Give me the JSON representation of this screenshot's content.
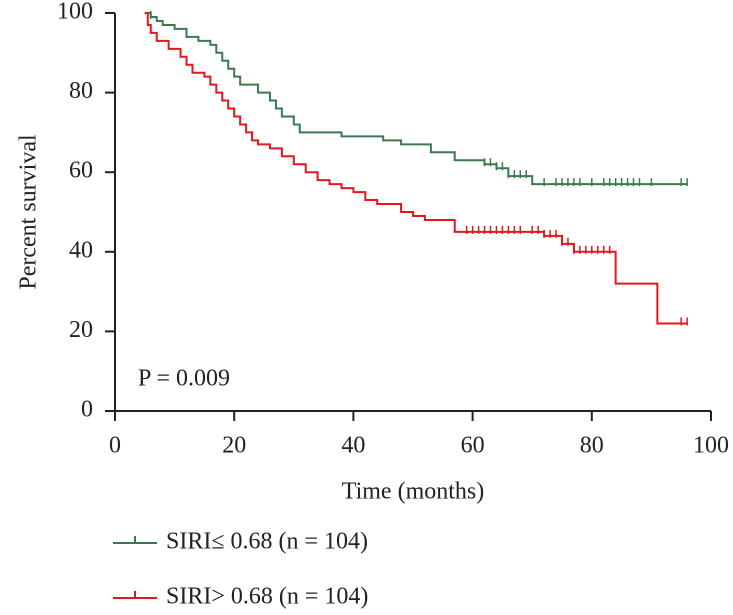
{
  "chart_data": {
    "type": "survival",
    "y_label": "Percent survival",
    "x_label": "Time (months)",
    "annotation": "P = 0.009",
    "xlim": [
      0,
      100
    ],
    "ylim": [
      0,
      100
    ],
    "xticks": [
      0,
      20,
      40,
      60,
      80,
      100
    ],
    "yticks": [
      0,
      20,
      40,
      60,
      80,
      100
    ],
    "series": [
      {
        "name": "SIRI≤ 0.68 (n = 104)",
        "color": "#3b7a50",
        "x": [
          5,
          6,
          7,
          8,
          10,
          12,
          14,
          16,
          17,
          18,
          19,
          20,
          21,
          24,
          26,
          27,
          28,
          30,
          31,
          38,
          45,
          48,
          53,
          57,
          62,
          64,
          66,
          70,
          96
        ],
        "values": [
          100,
          99,
          98,
          97,
          96,
          94,
          93,
          92,
          90,
          88,
          86,
          84,
          82,
          80,
          78,
          76,
          74,
          72,
          70,
          69,
          68,
          67,
          65,
          63,
          62,
          61,
          59,
          57,
          57
        ],
        "censor_x": [
          6,
          62,
          63,
          64,
          65,
          66,
          67,
          68,
          69,
          72,
          74,
          75,
          76,
          77,
          78,
          80,
          82,
          83,
          84,
          85,
          86,
          87,
          88,
          90,
          95,
          96
        ],
        "censor_values": [
          99,
          62,
          62,
          61,
          61,
          59,
          59,
          59,
          59,
          57,
          57,
          57,
          57,
          57,
          57,
          57,
          57,
          57,
          57,
          57,
          57,
          57,
          57,
          57,
          57,
          57
        ]
      },
      {
        "name": "SIRI> 0.68 (n = 104)",
        "color": "#e3171c",
        "x": [
          5,
          5.5,
          6,
          7,
          9,
          11,
          12,
          13,
          15,
          16,
          17,
          18,
          19,
          20,
          21,
          22,
          23,
          24,
          26,
          28,
          30,
          32,
          34,
          36,
          38,
          40,
          42,
          44,
          48,
          50,
          52,
          57,
          72,
          75,
          77,
          84,
          91,
          96
        ],
        "values": [
          100,
          97,
          95,
          93,
          91,
          89,
          87,
          85,
          84,
          82,
          80,
          78,
          76,
          74,
          72,
          70,
          68,
          67,
          66,
          64,
          62,
          60,
          58,
          57,
          56,
          55,
          53,
          52,
          50,
          49,
          48,
          45,
          44,
          42,
          40,
          32,
          22,
          22
        ],
        "censor_x": [
          59,
          60,
          61,
          62,
          63,
          64,
          65,
          66,
          67,
          68,
          70,
          71,
          72,
          73,
          74,
          75,
          76,
          77,
          78,
          79,
          80,
          81,
          82,
          83,
          95,
          96
        ],
        "censor_values": [
          45,
          45,
          45,
          45,
          45,
          45,
          45,
          45,
          45,
          45,
          45,
          45,
          44,
          44,
          44,
          42,
          42,
          40,
          40,
          40,
          40,
          40,
          40,
          40,
          22,
          22
        ]
      }
    ]
  }
}
